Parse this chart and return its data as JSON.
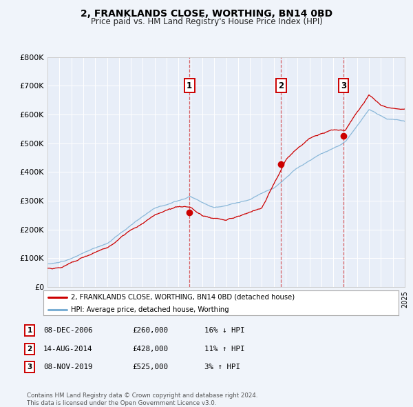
{
  "title": "2, FRANKLANDS CLOSE, WORTHING, BN14 0BD",
  "subtitle": "Price paid vs. HM Land Registry's House Price Index (HPI)",
  "bg_color": "#f0f4fa",
  "plot_bg_color": "#e8eef8",
  "grid_color": "#d0d8e8",
  "red_line_color": "#cc0000",
  "blue_line_color": "#7bafd4",
  "ylim": [
    0,
    800000
  ],
  "ytick_labels": [
    "£0",
    "£100K",
    "£200K",
    "£300K",
    "£400K",
    "£500K",
    "£600K",
    "£700K",
    "£800K"
  ],
  "ytick_values": [
    0,
    100000,
    200000,
    300000,
    400000,
    500000,
    600000,
    700000,
    800000
  ],
  "sale_dates": [
    2006.92,
    2014.61,
    2019.85
  ],
  "sale_prices": [
    260000,
    428000,
    525000
  ],
  "sale_labels": [
    "1",
    "2",
    "3"
  ],
  "vline_dates": [
    2006.92,
    2014.61,
    2019.85
  ],
  "legend_red_label": "2, FRANKLANDS CLOSE, WORTHING, BN14 0BD (detached house)",
  "legend_blue_label": "HPI: Average price, detached house, Worthing",
  "table_data": [
    {
      "num": "1",
      "date": "08-DEC-2006",
      "price": "£260,000",
      "pct": "16% ↓ HPI"
    },
    {
      "num": "2",
      "date": "14-AUG-2014",
      "price": "£428,000",
      "pct": "11% ↑ HPI"
    },
    {
      "num": "3",
      "date": "08-NOV-2019",
      "price": "£525,000",
      "pct": "3% ↑ HPI"
    }
  ],
  "footer": "Contains HM Land Registry data © Crown copyright and database right 2024.\nThis data is licensed under the Open Government Licence v3.0.",
  "xmin": 1995,
  "xmax": 2025
}
